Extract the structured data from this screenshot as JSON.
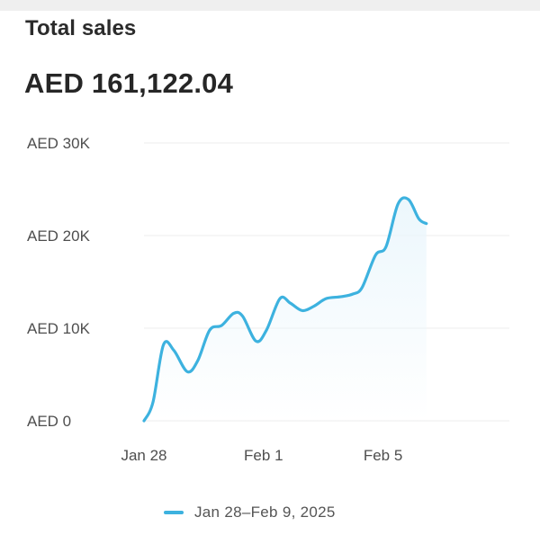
{
  "card": {
    "title": "Total sales",
    "total_value": "AED 161,122.04"
  },
  "colors": {
    "line": "#3db2df",
    "area": "#eaf6fc",
    "grid": "#ececec",
    "text": "#2b2b2b",
    "tick": "#4e4e4e"
  },
  "chart_data": {
    "type": "line",
    "title": "",
    "xlabel": "",
    "ylabel": "",
    "ylim": [
      0,
      30000
    ],
    "grid": true,
    "legend_placement": "bottom",
    "y_ticks": [
      {
        "value": 0,
        "label": "AED 0"
      },
      {
        "value": 10000,
        "label": "AED 10K"
      },
      {
        "value": 20000,
        "label": "AED 20K"
      },
      {
        "value": 30000,
        "label": "AED 30K"
      }
    ],
    "x_ticks": [
      {
        "day": 0,
        "label": "Jan 28"
      },
      {
        "day": 4,
        "label": "Feb 1"
      },
      {
        "day": 8,
        "label": "Feb 5"
      }
    ],
    "series": [
      {
        "name": "Jan 28–Feb 9, 2025",
        "points": [
          {
            "day": 0.0,
            "value": 0
          },
          {
            "day": 0.3,
            "value": 2000
          },
          {
            "day": 0.65,
            "value": 8200
          },
          {
            "day": 1.0,
            "value": 7600
          },
          {
            "day": 1.45,
            "value": 5300
          },
          {
            "day": 1.8,
            "value": 6500
          },
          {
            "day": 2.2,
            "value": 9800
          },
          {
            "day": 2.6,
            "value": 10300
          },
          {
            "day": 3.0,
            "value": 11600
          },
          {
            "day": 3.3,
            "value": 11300
          },
          {
            "day": 3.75,
            "value": 8600
          },
          {
            "day": 4.1,
            "value": 9800
          },
          {
            "day": 4.55,
            "value": 13200
          },
          {
            "day": 4.9,
            "value": 12700
          },
          {
            "day": 5.3,
            "value": 11900
          },
          {
            "day": 5.7,
            "value": 12400
          },
          {
            "day": 6.1,
            "value": 13200
          },
          {
            "day": 6.6,
            "value": 13400
          },
          {
            "day": 7.0,
            "value": 13700
          },
          {
            "day": 7.3,
            "value": 14400
          },
          {
            "day": 7.75,
            "value": 17900
          },
          {
            "day": 8.1,
            "value": 18800
          },
          {
            "day": 8.5,
            "value": 23400
          },
          {
            "day": 8.85,
            "value": 23900
          },
          {
            "day": 9.2,
            "value": 21800
          },
          {
            "day": 9.45,
            "value": 21300
          }
        ]
      }
    ]
  },
  "legend": {
    "label": "Jan 28–Feb 9, 2025"
  }
}
